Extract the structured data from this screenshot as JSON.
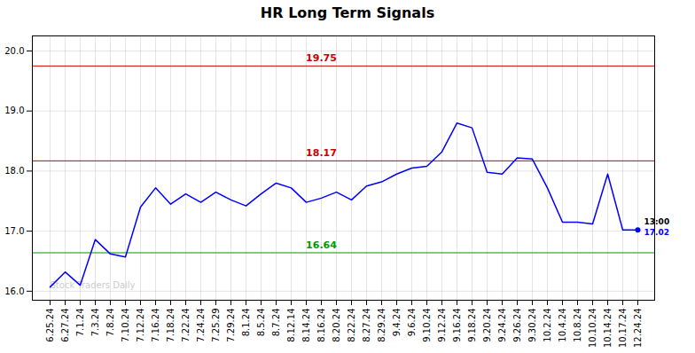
{
  "chart_data": {
    "type": "line",
    "title": "HR Long Term Signals",
    "categories": [
      "6.25.24",
      "6.27.24",
      "7.1.24",
      "7.3.24",
      "7.8.24",
      "7.10.24",
      "7.12.24",
      "7.16.24",
      "7.18.24",
      "7.22.24",
      "7.24.24",
      "7.25.29",
      "7.29.24",
      "8.1.24",
      "8.5.24",
      "8.7.24",
      "8.12.14",
      "8.14.24",
      "8.16.24",
      "8.20.24",
      "8.22.24",
      "8.27.24",
      "8.29.24",
      "9.4.24",
      "9.6.24",
      "9.10.24",
      "9.12.24",
      "9.16.24",
      "9.18.24",
      "9.20.24",
      "9.24.24",
      "9.26.24",
      "9.30.24",
      "10.2.24",
      "10.4.24",
      "10.8.24",
      "10.10.24",
      "10.14.24",
      "10.17.24",
      "12.24.24"
    ],
    "values": [
      16.07,
      16.32,
      16.1,
      16.86,
      16.62,
      16.57,
      17.4,
      17.72,
      17.45,
      17.62,
      17.48,
      17.65,
      17.52,
      17.42,
      17.62,
      17.8,
      17.72,
      17.48,
      17.55,
      17.65,
      17.52,
      17.75,
      17.82,
      17.95,
      18.05,
      18.08,
      18.32,
      18.8,
      18.72,
      17.98,
      17.95,
      18.22,
      18.2,
      17.72,
      17.15,
      17.15,
      17.12,
      17.95,
      17.02,
      17.02
    ],
    "color": "blue",
    "ylim": [
      15.85,
      20.25
    ],
    "yticks": [
      16,
      17,
      18,
      19,
      20
    ],
    "grid": true,
    "hlines": [
      {
        "value": 19.75,
        "label": "19.75",
        "color": "#cc0000"
      },
      {
        "value": 18.17,
        "label": "18.17",
        "color": "#cc0000"
      },
      {
        "value": 16.64,
        "label": "16.64",
        "color": "#009900"
      }
    ],
    "annotations": [
      {
        "text": "13:00",
        "color": "#000000"
      },
      {
        "text": "17.02",
        "color": "blue"
      }
    ],
    "watermark": {
      "text": "Stock Traders Daily",
      "color": "#cccccc"
    }
  }
}
